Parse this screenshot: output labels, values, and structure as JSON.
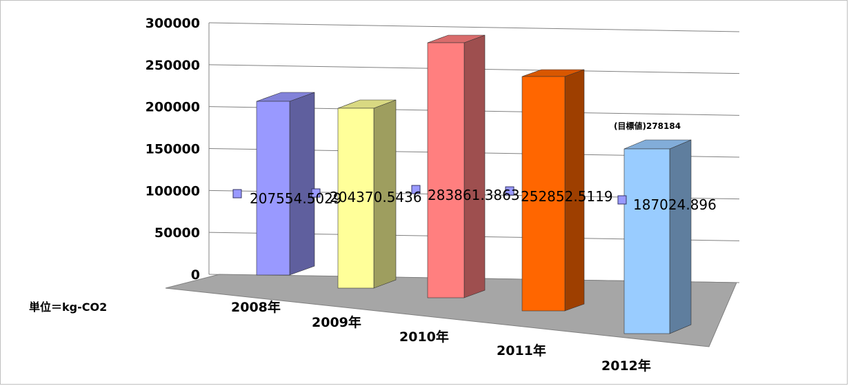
{
  "chart_data": {
    "type": "bar",
    "style": "3d-perspective",
    "categories": [
      "2008年",
      "2009年",
      "2010年",
      "2011年",
      "2012年"
    ],
    "values": [
      207554.5029,
      204370.5436,
      283861.3863,
      252852.5119,
      187024.896
    ],
    "data_labels": [
      "207554.5029",
      "204370.5436",
      "283861.3863",
      "252852.5119",
      "187024.896"
    ],
    "yticks": [
      "0",
      "50000",
      "100000",
      "150000",
      "200000",
      "250000",
      "300000"
    ],
    "ylim": [
      0,
      300000
    ],
    "grid": true,
    "unit_label": "単位＝kg-CO2",
    "annotation": "(目標値)278184",
    "colors": {
      "bars": [
        "#9999ff",
        "#ffff99",
        "#ff7f7f",
        "#ff6600",
        "#99ccff"
      ],
      "floor": "#a6a6a6",
      "gridline": "#808080",
      "marker": "#9999ff"
    }
  }
}
